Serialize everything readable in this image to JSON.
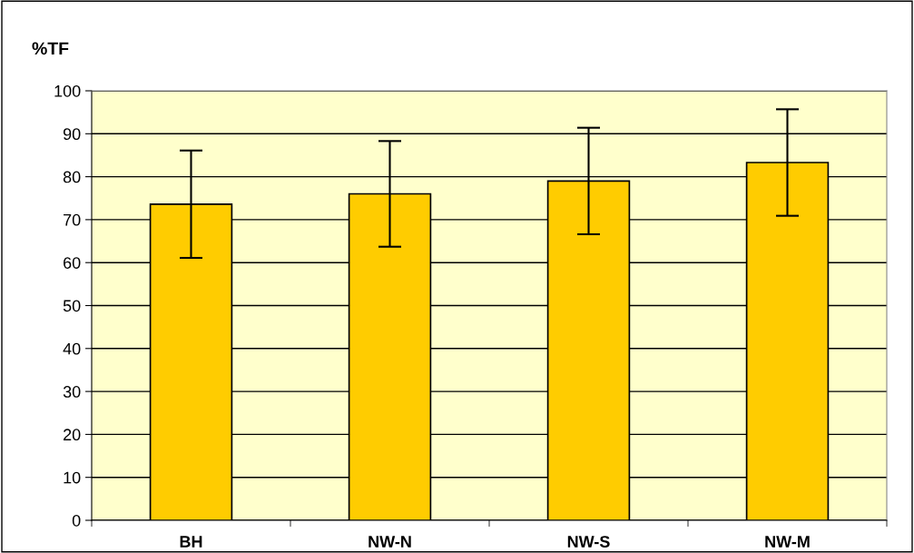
{
  "chart_data": {
    "type": "bar",
    "ylabel": "%TF",
    "categories": [
      "BH",
      "NW-N",
      "NW-S",
      "NW-M"
    ],
    "values": [
      73.6,
      76.0,
      79.0,
      83.3
    ],
    "errors": [
      12.5,
      12.3,
      12.4,
      12.4
    ],
    "color": "#ffcc00",
    "ylim": [
      0,
      100
    ],
    "yticks": [
      0,
      10,
      20,
      30,
      40,
      50,
      60,
      70,
      80,
      90,
      100
    ],
    "grid": "y",
    "legend": false
  }
}
